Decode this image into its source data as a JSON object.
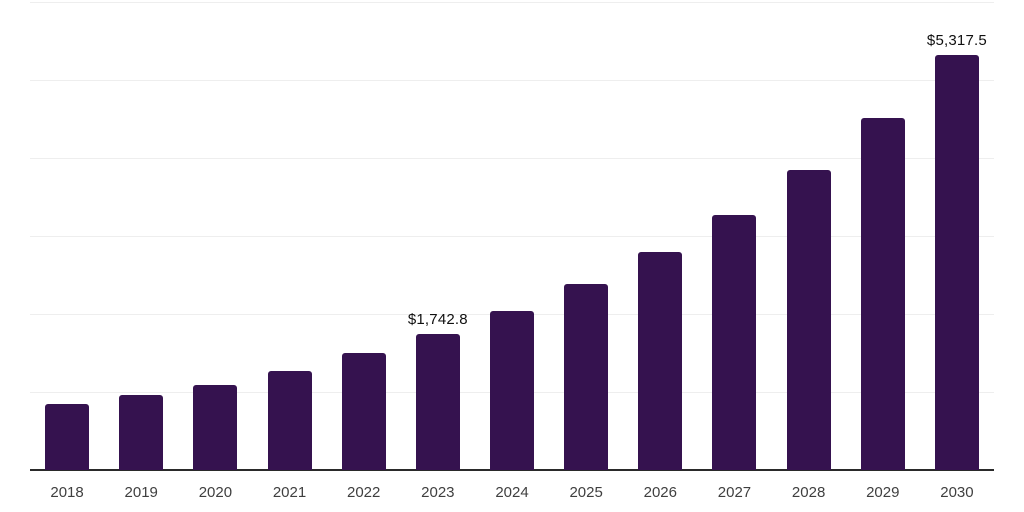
{
  "chart_data": {
    "type": "bar",
    "title": "",
    "xlabel": "",
    "ylabel": "",
    "categories": [
      "2018",
      "2019",
      "2020",
      "2021",
      "2022",
      "2023",
      "2024",
      "2025",
      "2026",
      "2027",
      "2028",
      "2029",
      "2030"
    ],
    "values": [
      842,
      961,
      1090,
      1269,
      1496,
      1742.8,
      2038,
      2385,
      2795,
      3269,
      3846,
      4513,
      5317.5
    ],
    "annotations": [
      {
        "category": "2023",
        "label": "$1,742.8"
      },
      {
        "category": "2030",
        "label": "$5,317.5"
      }
    ],
    "ylim": [
      0,
      6000
    ],
    "gridline_step": 1000,
    "grid": true,
    "legend": false,
    "y_axis_labels_visible": false,
    "colors": {
      "bar": "#35124F",
      "value_label": "#101010",
      "tick_label": "#3F3F3F",
      "axis_line": "#2A2A2A",
      "gridline": "#EEEEEE",
      "background": "#FFFFFF"
    }
  }
}
